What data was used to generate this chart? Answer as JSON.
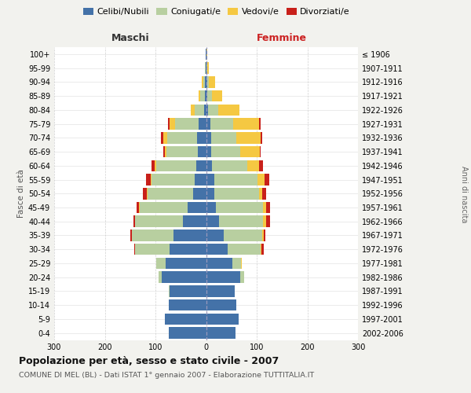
{
  "age_groups": [
    "0-4",
    "5-9",
    "10-14",
    "15-19",
    "20-24",
    "25-29",
    "30-34",
    "35-39",
    "40-44",
    "45-49",
    "50-54",
    "55-59",
    "60-64",
    "65-69",
    "70-74",
    "75-79",
    "80-84",
    "85-89",
    "90-94",
    "95-99",
    "100+"
  ],
  "birth_years": [
    "2002-2006",
    "1997-2001",
    "1992-1996",
    "1987-1991",
    "1982-1986",
    "1977-1981",
    "1972-1976",
    "1967-1971",
    "1962-1966",
    "1957-1961",
    "1952-1956",
    "1947-1951",
    "1942-1946",
    "1937-1941",
    "1932-1936",
    "1927-1931",
    "1922-1926",
    "1917-1921",
    "1912-1916",
    "1907-1911",
    "≤ 1906"
  ],
  "males_celibi": [
    74,
    82,
    74,
    72,
    88,
    80,
    72,
    65,
    46,
    36,
    26,
    22,
    20,
    16,
    18,
    14,
    4,
    3,
    2,
    1,
    1
  ],
  "males_coniugati": [
    0,
    0,
    0,
    1,
    6,
    18,
    68,
    82,
    95,
    95,
    90,
    85,
    78,
    62,
    58,
    48,
    18,
    8,
    4,
    1,
    0
  ],
  "males_vedovi": [
    0,
    0,
    0,
    0,
    0,
    0,
    0,
    0,
    0,
    1,
    1,
    2,
    4,
    4,
    9,
    10,
    8,
    4,
    2,
    1,
    0
  ],
  "males_divorziati": [
    0,
    0,
    0,
    0,
    0,
    1,
    2,
    3,
    3,
    5,
    8,
    10,
    5,
    2,
    4,
    3,
    1,
    0,
    0,
    0,
    0
  ],
  "females_nubili": [
    58,
    65,
    60,
    56,
    68,
    52,
    42,
    35,
    25,
    20,
    16,
    16,
    12,
    10,
    10,
    8,
    4,
    3,
    2,
    1,
    1
  ],
  "females_coniugate": [
    0,
    0,
    0,
    1,
    7,
    17,
    65,
    76,
    88,
    92,
    88,
    85,
    70,
    58,
    50,
    45,
    20,
    9,
    4,
    1,
    0
  ],
  "females_vedove": [
    0,
    0,
    0,
    0,
    0,
    1,
    2,
    3,
    5,
    7,
    7,
    14,
    22,
    38,
    48,
    52,
    42,
    20,
    12,
    3,
    1
  ],
  "females_divorziate": [
    0,
    0,
    0,
    0,
    0,
    1,
    5,
    3,
    8,
    8,
    8,
    10,
    8,
    2,
    3,
    2,
    0,
    0,
    0,
    0,
    0
  ],
  "colors_celibi": "#4472a8",
  "colors_coniugati": "#b8cfa0",
  "colors_vedovi": "#f5c842",
  "colors_divorziati": "#c8201a",
  "xlim": 300,
  "title": "Popolazione per età, sesso e stato civile - 2007",
  "subtitle": "COMUNE DI MEL (BL) - Dati ISTAT 1° gennaio 2007 - Elaborazione TUTTITALIA.IT",
  "ylabel_left": "Fasce di età",
  "ylabel_right": "Anni di nascita",
  "xlabel_maschi": "Maschi",
  "xlabel_femmine": "Femmine",
  "bg_color": "#f2f2ee",
  "plot_bg": "#ffffff"
}
